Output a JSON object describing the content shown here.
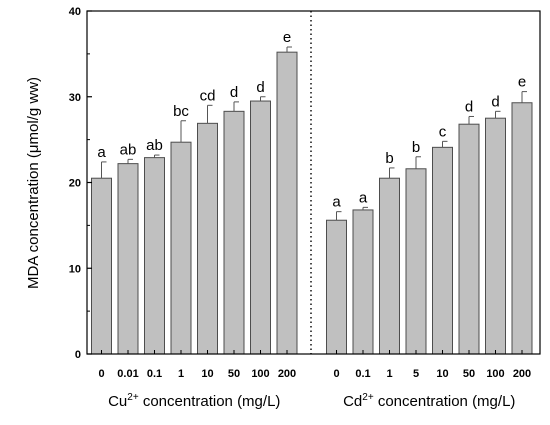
{
  "chart_data": {
    "type": "bar",
    "ylabel": "MDA concentration (μmol/g ww)",
    "ylim": [
      0,
      40
    ],
    "yticks": [
      "0",
      "10",
      "20",
      "30",
      "40"
    ],
    "grid": false,
    "bar_color": "#c0c0c0",
    "bar_edge_color": "#4d4d4d",
    "groups": [
      {
        "xlabel_prefix": "Cu",
        "xlabel_superscript": "2+",
        "xlabel_suffix": " concentration (mg/L)",
        "categories": [
          "0",
          "0.01",
          "0.1",
          "1",
          "10",
          "50",
          "100",
          "200"
        ],
        "values": [
          20.5,
          22.2,
          22.9,
          24.7,
          26.9,
          28.3,
          29.5,
          35.2
        ],
        "errors": [
          1.9,
          0.5,
          0.3,
          2.5,
          2.1,
          1.1,
          0.5,
          0.6
        ],
        "letters": [
          "a",
          "ab",
          "ab",
          "bc",
          "cd",
          "d",
          "d",
          "e"
        ]
      },
      {
        "xlabel_prefix": "Cd",
        "xlabel_superscript": "2+",
        "xlabel_suffix": " concentration (mg/L)",
        "categories": [
          "0",
          "0.1",
          "1",
          "5",
          "10",
          "50",
          "100",
          "200"
        ],
        "values": [
          15.6,
          16.8,
          20.5,
          21.6,
          24.1,
          26.8,
          27.5,
          29.3
        ],
        "errors": [
          1.0,
          0.3,
          1.2,
          1.4,
          0.7,
          0.9,
          0.8,
          1.3
        ],
        "letters": [
          "a",
          "a",
          "b",
          "b",
          "c",
          "d",
          "d",
          "e"
        ]
      }
    ]
  }
}
